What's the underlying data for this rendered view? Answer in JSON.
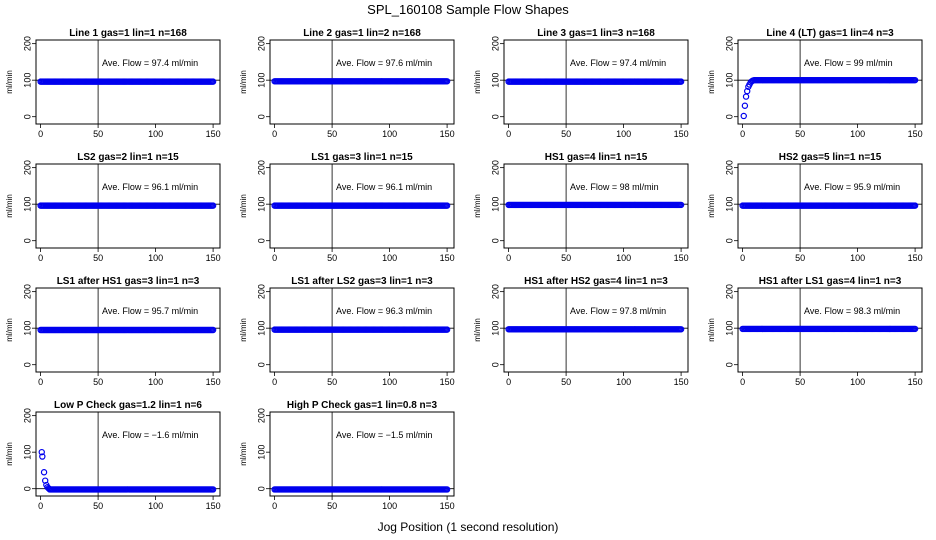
{
  "title": "SPL_160108  Sample Flow Shapes",
  "xlabel": "Jog Position (1 second resolution)",
  "chart_data": [
    {
      "type": "scatter",
      "title": "Line 1 gas=1 lin=1 n=168",
      "ylabel": "ml/min",
      "annotation": "Ave. Flow = 97.4  ml/min",
      "ylim": [
        -20,
        210
      ],
      "xlim": [
        -4,
        156
      ],
      "xticks": [
        "0",
        "50",
        "100",
        "150"
      ],
      "yticks": [
        "0",
        "100",
        "200"
      ],
      "vline": 50,
      "ref_y": 100,
      "shape": "flat",
      "level": 96
    },
    {
      "type": "scatter",
      "title": "Line 2 gas=1 lin=2 n=168",
      "ylabel": "ml/min",
      "annotation": "Ave. Flow = 97.6  ml/min",
      "ylim": [
        -20,
        210
      ],
      "xlim": [
        -4,
        156
      ],
      "xticks": [
        "0",
        "50",
        "100",
        "150"
      ],
      "yticks": [
        "0",
        "100",
        "200"
      ],
      "vline": 50,
      "ref_y": 100,
      "shape": "flat",
      "level": 97
    },
    {
      "type": "scatter",
      "title": "Line 3 gas=1 lin=3 n=168",
      "ylabel": "ml/min",
      "annotation": "Ave. Flow = 97.4  ml/min",
      "ylim": [
        -20,
        210
      ],
      "xlim": [
        -4,
        156
      ],
      "xticks": [
        "0",
        "50",
        "100",
        "150"
      ],
      "yticks": [
        "0",
        "100",
        "200"
      ],
      "vline": 50,
      "ref_y": 100,
      "shape": "flat",
      "level": 96
    },
    {
      "type": "scatter",
      "title": "Line 4 (LT) gas=1 lin=4 n=3",
      "ylabel": "ml/min",
      "annotation": "Ave. Flow = 99  ml/min",
      "ylim": [
        -20,
        210
      ],
      "xlim": [
        -4,
        156
      ],
      "xticks": [
        "0",
        "50",
        "100",
        "150"
      ],
      "yticks": [
        "0",
        "100",
        "200"
      ],
      "vline": 50,
      "ref_y": 100,
      "shape": "rise",
      "level": 100
    },
    {
      "type": "scatter",
      "title": "LS2 gas=2 lin=1 n=15",
      "ylabel": "ml/min",
      "annotation": "Ave. Flow = 96.1  ml/min",
      "ylim": [
        -20,
        210
      ],
      "xlim": [
        -4,
        156
      ],
      "xticks": [
        "0",
        "50",
        "100",
        "150"
      ],
      "yticks": [
        "0",
        "100",
        "200"
      ],
      "vline": 50,
      "ref_y": 100,
      "shape": "flat",
      "level": 96
    },
    {
      "type": "scatter",
      "title": "LS1 gas=3 lin=1 n=15",
      "ylabel": "ml/min",
      "annotation": "Ave. Flow = 96.1  ml/min",
      "ylim": [
        -20,
        210
      ],
      "xlim": [
        -4,
        156
      ],
      "xticks": [
        "0",
        "50",
        "100",
        "150"
      ],
      "yticks": [
        "0",
        "100",
        "200"
      ],
      "vline": 50,
      "ref_y": 100,
      "shape": "flat",
      "level": 96
    },
    {
      "type": "scatter",
      "title": "HS1 gas=4 lin=1 n=15",
      "ylabel": "ml/min",
      "annotation": "Ave. Flow = 98  ml/min",
      "ylim": [
        -20,
        210
      ],
      "xlim": [
        -4,
        156
      ],
      "xticks": [
        "0",
        "50",
        "100",
        "150"
      ],
      "yticks": [
        "0",
        "100",
        "200"
      ],
      "vline": 50,
      "ref_y": 100,
      "shape": "flat",
      "level": 98
    },
    {
      "type": "scatter",
      "title": "HS2 gas=5 lin=1 n=15",
      "ylabel": "ml/min",
      "annotation": "Ave. Flow = 95.9  ml/min",
      "ylim": [
        -20,
        210
      ],
      "xlim": [
        -4,
        156
      ],
      "xticks": [
        "0",
        "50",
        "100",
        "150"
      ],
      "yticks": [
        "0",
        "100",
        "200"
      ],
      "vline": 50,
      "ref_y": 100,
      "shape": "flat",
      "level": 96
    },
    {
      "type": "scatter",
      "title": "LS1 after HS1 gas=3 lin=1 n=3",
      "ylabel": "ml/min",
      "annotation": "Ave. Flow = 95.7  ml/min",
      "ylim": [
        -20,
        210
      ],
      "xlim": [
        -4,
        156
      ],
      "xticks": [
        "0",
        "50",
        "100",
        "150"
      ],
      "yticks": [
        "0",
        "100",
        "200"
      ],
      "vline": 50,
      "ref_y": 100,
      "shape": "flat",
      "level": 95
    },
    {
      "type": "scatter",
      "title": "LS1 after LS2 gas=3 lin=1 n=3",
      "ylabel": "ml/min",
      "annotation": "Ave. Flow = 96.3  ml/min",
      "ylim": [
        -20,
        210
      ],
      "xlim": [
        -4,
        156
      ],
      "xticks": [
        "0",
        "50",
        "100",
        "150"
      ],
      "yticks": [
        "0",
        "100",
        "200"
      ],
      "vline": 50,
      "ref_y": 100,
      "shape": "flat",
      "level": 96
    },
    {
      "type": "scatter",
      "title": "HS1 after HS2 gas=4 lin=1 n=3",
      "ylabel": "ml/min",
      "annotation": "Ave. Flow = 97.8  ml/min",
      "ylim": [
        -20,
        210
      ],
      "xlim": [
        -4,
        156
      ],
      "xticks": [
        "0",
        "50",
        "100",
        "150"
      ],
      "yticks": [
        "0",
        "100",
        "200"
      ],
      "vline": 50,
      "ref_y": 100,
      "shape": "flat",
      "level": 97
    },
    {
      "type": "scatter",
      "title": "HS1 after LS1 gas=4 lin=1 n=3",
      "ylabel": "ml/min",
      "annotation": "Ave. Flow = 98.3  ml/min",
      "ylim": [
        -20,
        210
      ],
      "xlim": [
        -4,
        156
      ],
      "xticks": [
        "0",
        "50",
        "100",
        "150"
      ],
      "yticks": [
        "0",
        "100",
        "200"
      ],
      "vline": 50,
      "ref_y": 100,
      "shape": "flat",
      "level": 98
    },
    {
      "type": "scatter",
      "title": "Low P Check gas=1.2 lin=1 n=6",
      "ylabel": "ml/min",
      "annotation": "Ave. Flow = −1.6  ml/min",
      "ylim": [
        -20,
        210
      ],
      "xlim": [
        -4,
        156
      ],
      "xticks": [
        "0",
        "50",
        "100",
        "150"
      ],
      "yticks": [
        "0",
        "100",
        "200"
      ],
      "vline": 50,
      "ref_y": 0,
      "shape": "decay",
      "level": -2
    },
    {
      "type": "scatter",
      "title": "High P Check gas=1 lin=0.8 n=3",
      "ylabel": "ml/min",
      "annotation": "Ave. Flow = −1.5  ml/min",
      "ylim": [
        -20,
        210
      ],
      "xlim": [
        -4,
        156
      ],
      "xticks": [
        "0",
        "50",
        "100",
        "150"
      ],
      "yticks": [
        "0",
        "100",
        "200"
      ],
      "vline": 50,
      "ref_y": 0,
      "shape": "flat",
      "level": -2
    }
  ]
}
